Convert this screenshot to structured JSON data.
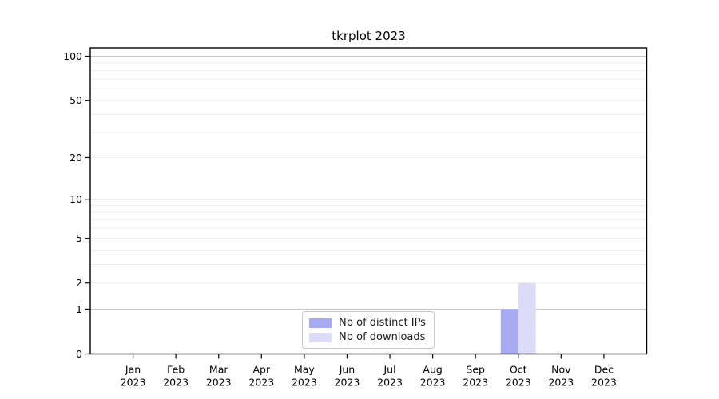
{
  "title": "tkrplot 2023",
  "chart_data": {
    "type": "bar",
    "title": "tkrplot 2023",
    "categories": [
      "Jan",
      "Feb",
      "Mar",
      "Apr",
      "May",
      "Jun",
      "Jul",
      "Aug",
      "Sep",
      "Oct",
      "Nov",
      "Dec"
    ],
    "year": "2023",
    "series": [
      {
        "name": "Nb of distinct IPs",
        "color": "#a9abf2",
        "values": [
          0,
          0,
          0,
          0,
          0,
          0,
          0,
          0,
          0,
          1,
          0,
          0
        ]
      },
      {
        "name": "Nb of downloads",
        "color": "#dcdcf8",
        "values": [
          0,
          0,
          0,
          0,
          0,
          0,
          0,
          0,
          0,
          2,
          0,
          0
        ]
      }
    ],
    "yscale": "log1p",
    "ylim": [
      0,
      114
    ],
    "ytick_values": [
      0,
      1,
      2,
      5,
      10,
      20,
      50,
      100
    ],
    "major_gridlines": [
      1,
      10,
      100
    ],
    "minor_gridlines": [
      2,
      3,
      4,
      5,
      6,
      7,
      8,
      9,
      20,
      30,
      40,
      50,
      60,
      70,
      80,
      90
    ],
    "grid": true,
    "legend_position": "lower center",
    "colors": {
      "axis": "#000000",
      "gridline_minor": "#ededed",
      "gridline_major": "#c6c6c6",
      "tick_label": "#000000",
      "background": "#ffffff"
    }
  }
}
